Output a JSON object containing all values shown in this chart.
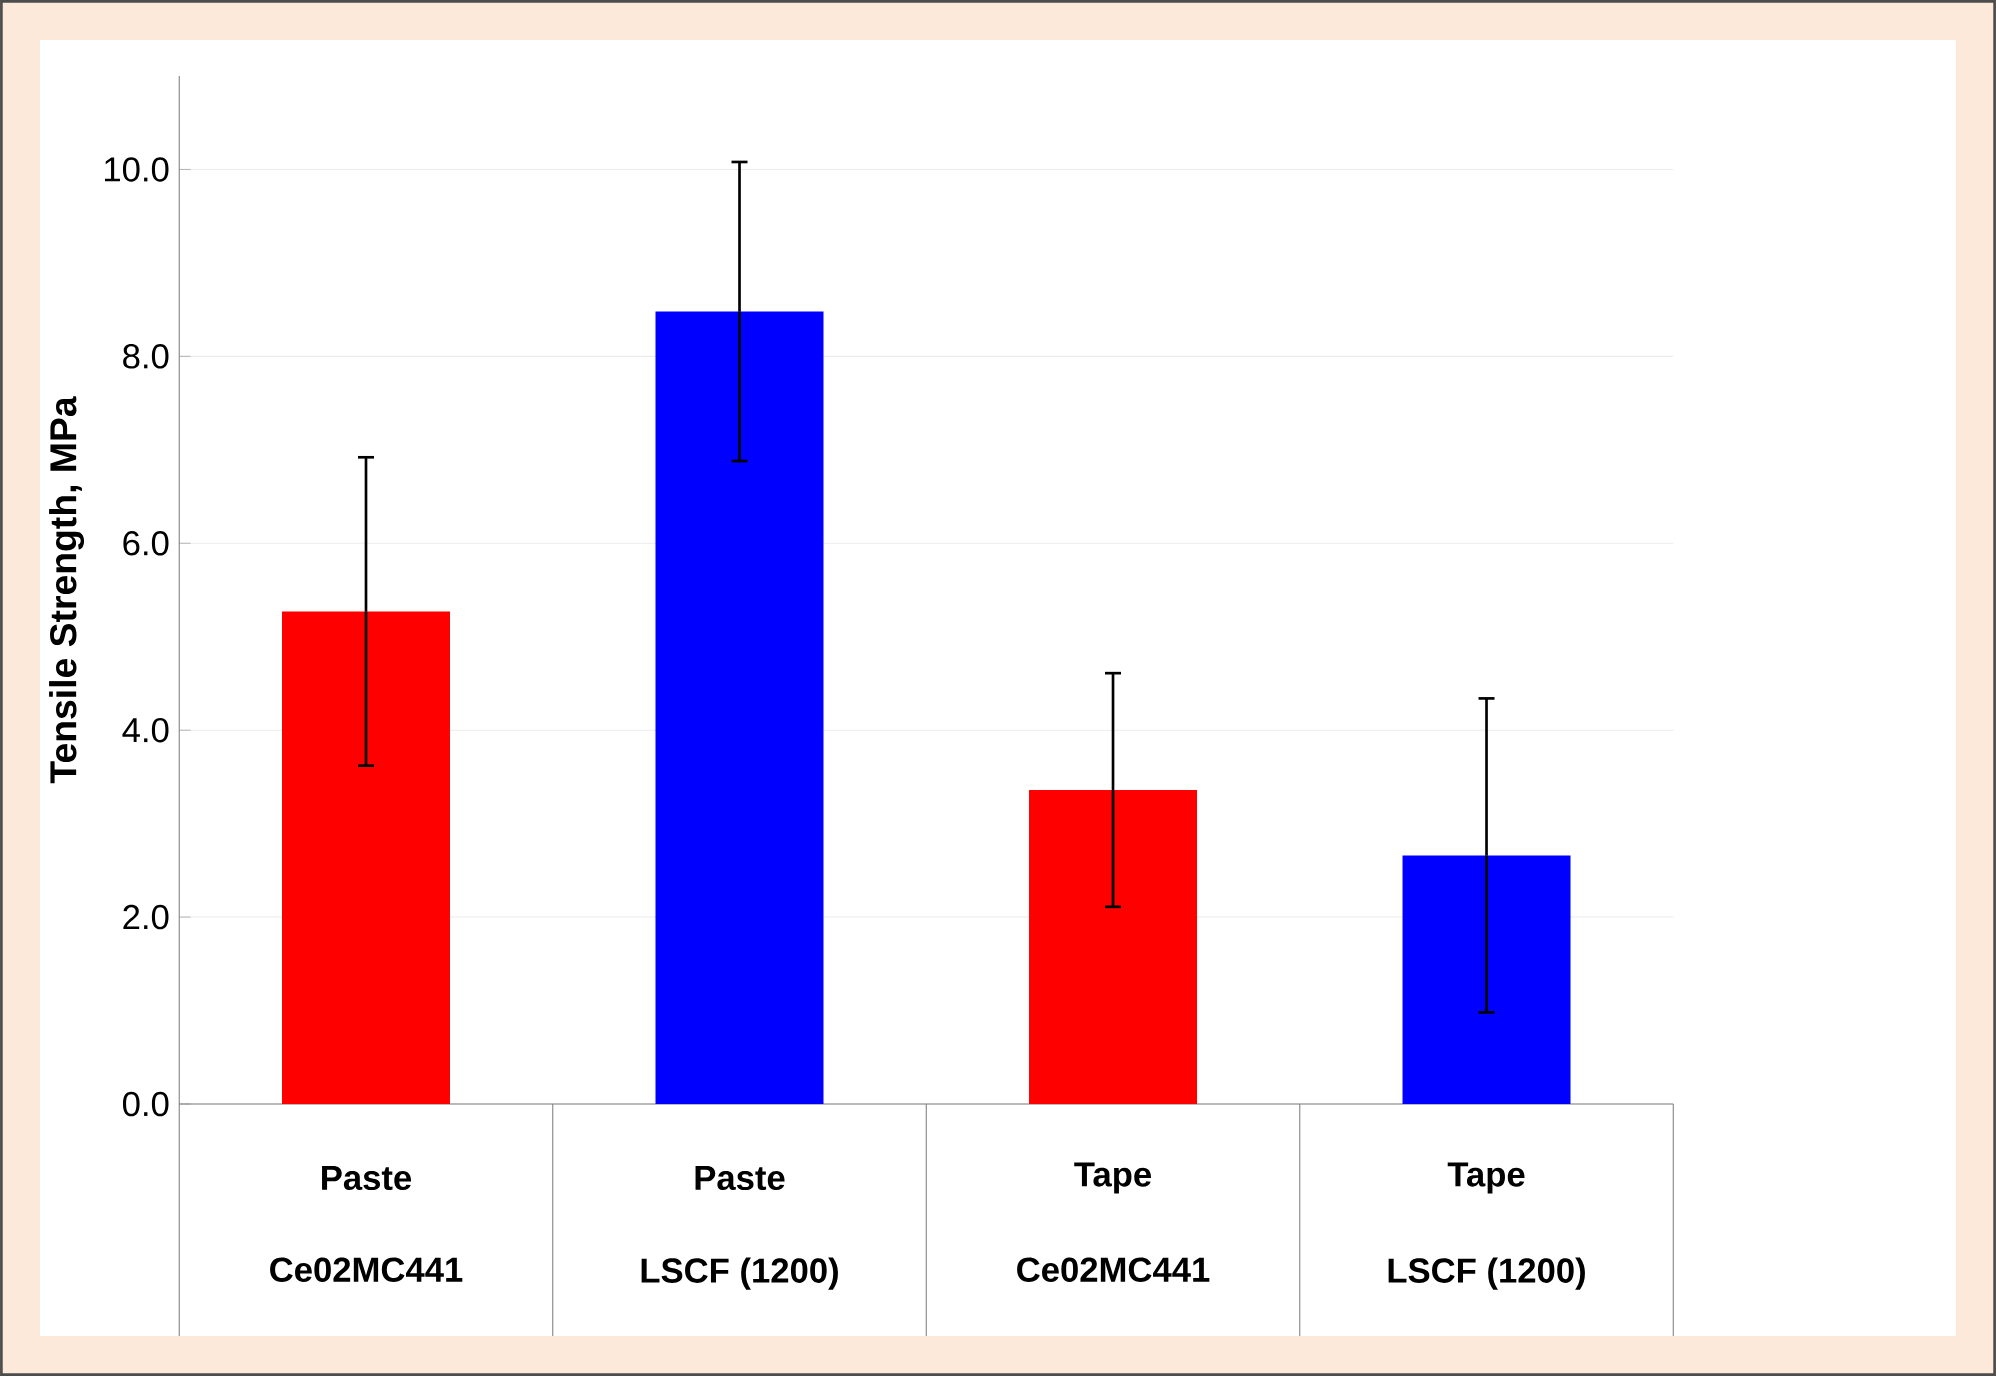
{
  "chart_data": {
    "type": "bar",
    "ylabel": "Tensile Strength, MPa",
    "categories": [
      "Ce02MC441",
      "LSCF (1200)",
      "Ce02MC441",
      "LSCF (1200)"
    ],
    "annotations": [
      "Paste",
      "Paste",
      "Tape",
      "Tape"
    ],
    "values": [
      5.27,
      8.48,
      3.36,
      2.66
    ],
    "errors": [
      1.65,
      1.6,
      1.25,
      1.68
    ],
    "colors": [
      "#ff0000",
      "#0000ff",
      "#ff0000",
      "#0000ff"
    ],
    "ylim": [
      0,
      11
    ],
    "yticks": [
      {
        "value": 0,
        "label": "0.0"
      },
      {
        "value": 2,
        "label": "2.0"
      },
      {
        "value": 4,
        "label": "4.0"
      },
      {
        "value": 6,
        "label": "6.0"
      },
      {
        "value": 8,
        "label": "8.0"
      },
      {
        "value": 10,
        "label": "10.0"
      }
    ],
    "grid": "y"
  }
}
